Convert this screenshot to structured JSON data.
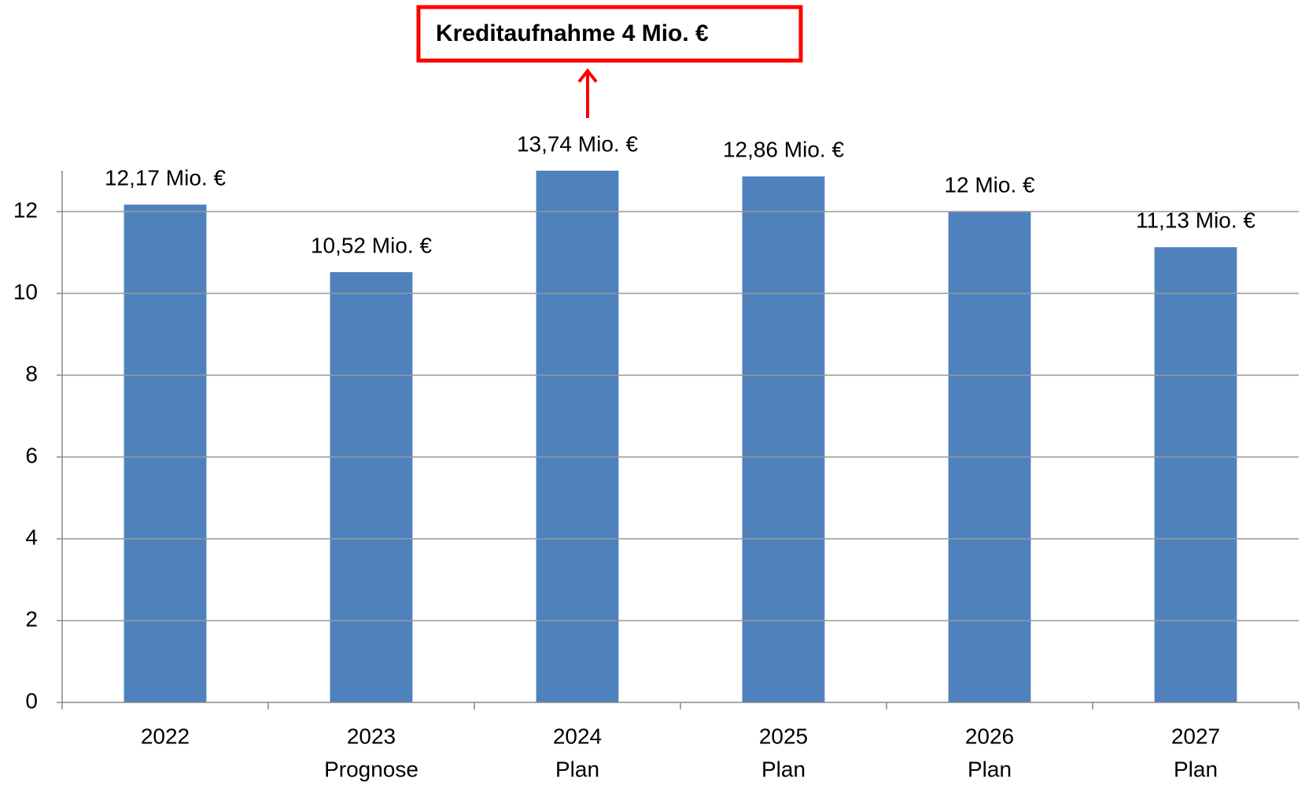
{
  "chart_data": {
    "type": "bar",
    "annotation": "Kreditaufnahme 4 Mio. €",
    "categories": [
      [
        "2022"
      ],
      [
        "2023",
        "Prognose"
      ],
      [
        "2024",
        "Plan"
      ],
      [
        "2025",
        "Plan"
      ],
      [
        "2026",
        "Plan"
      ],
      [
        "2027",
        "Plan"
      ]
    ],
    "values": [
      12.17,
      10.52,
      13.74,
      12.86,
      12,
      11.13
    ],
    "value_labels": [
      "12,17 Mio. €",
      "10,52 Mio. €",
      "13,74 Mio. €",
      "12,86 Mio. €",
      "12 Mio. €",
      "11,13 Mio. €"
    ],
    "color": "#4f81bd",
    "ylim": [
      0,
      13
    ],
    "yticks": [
      0,
      2,
      4,
      6,
      8,
      10,
      12
    ],
    "grid": true
  }
}
